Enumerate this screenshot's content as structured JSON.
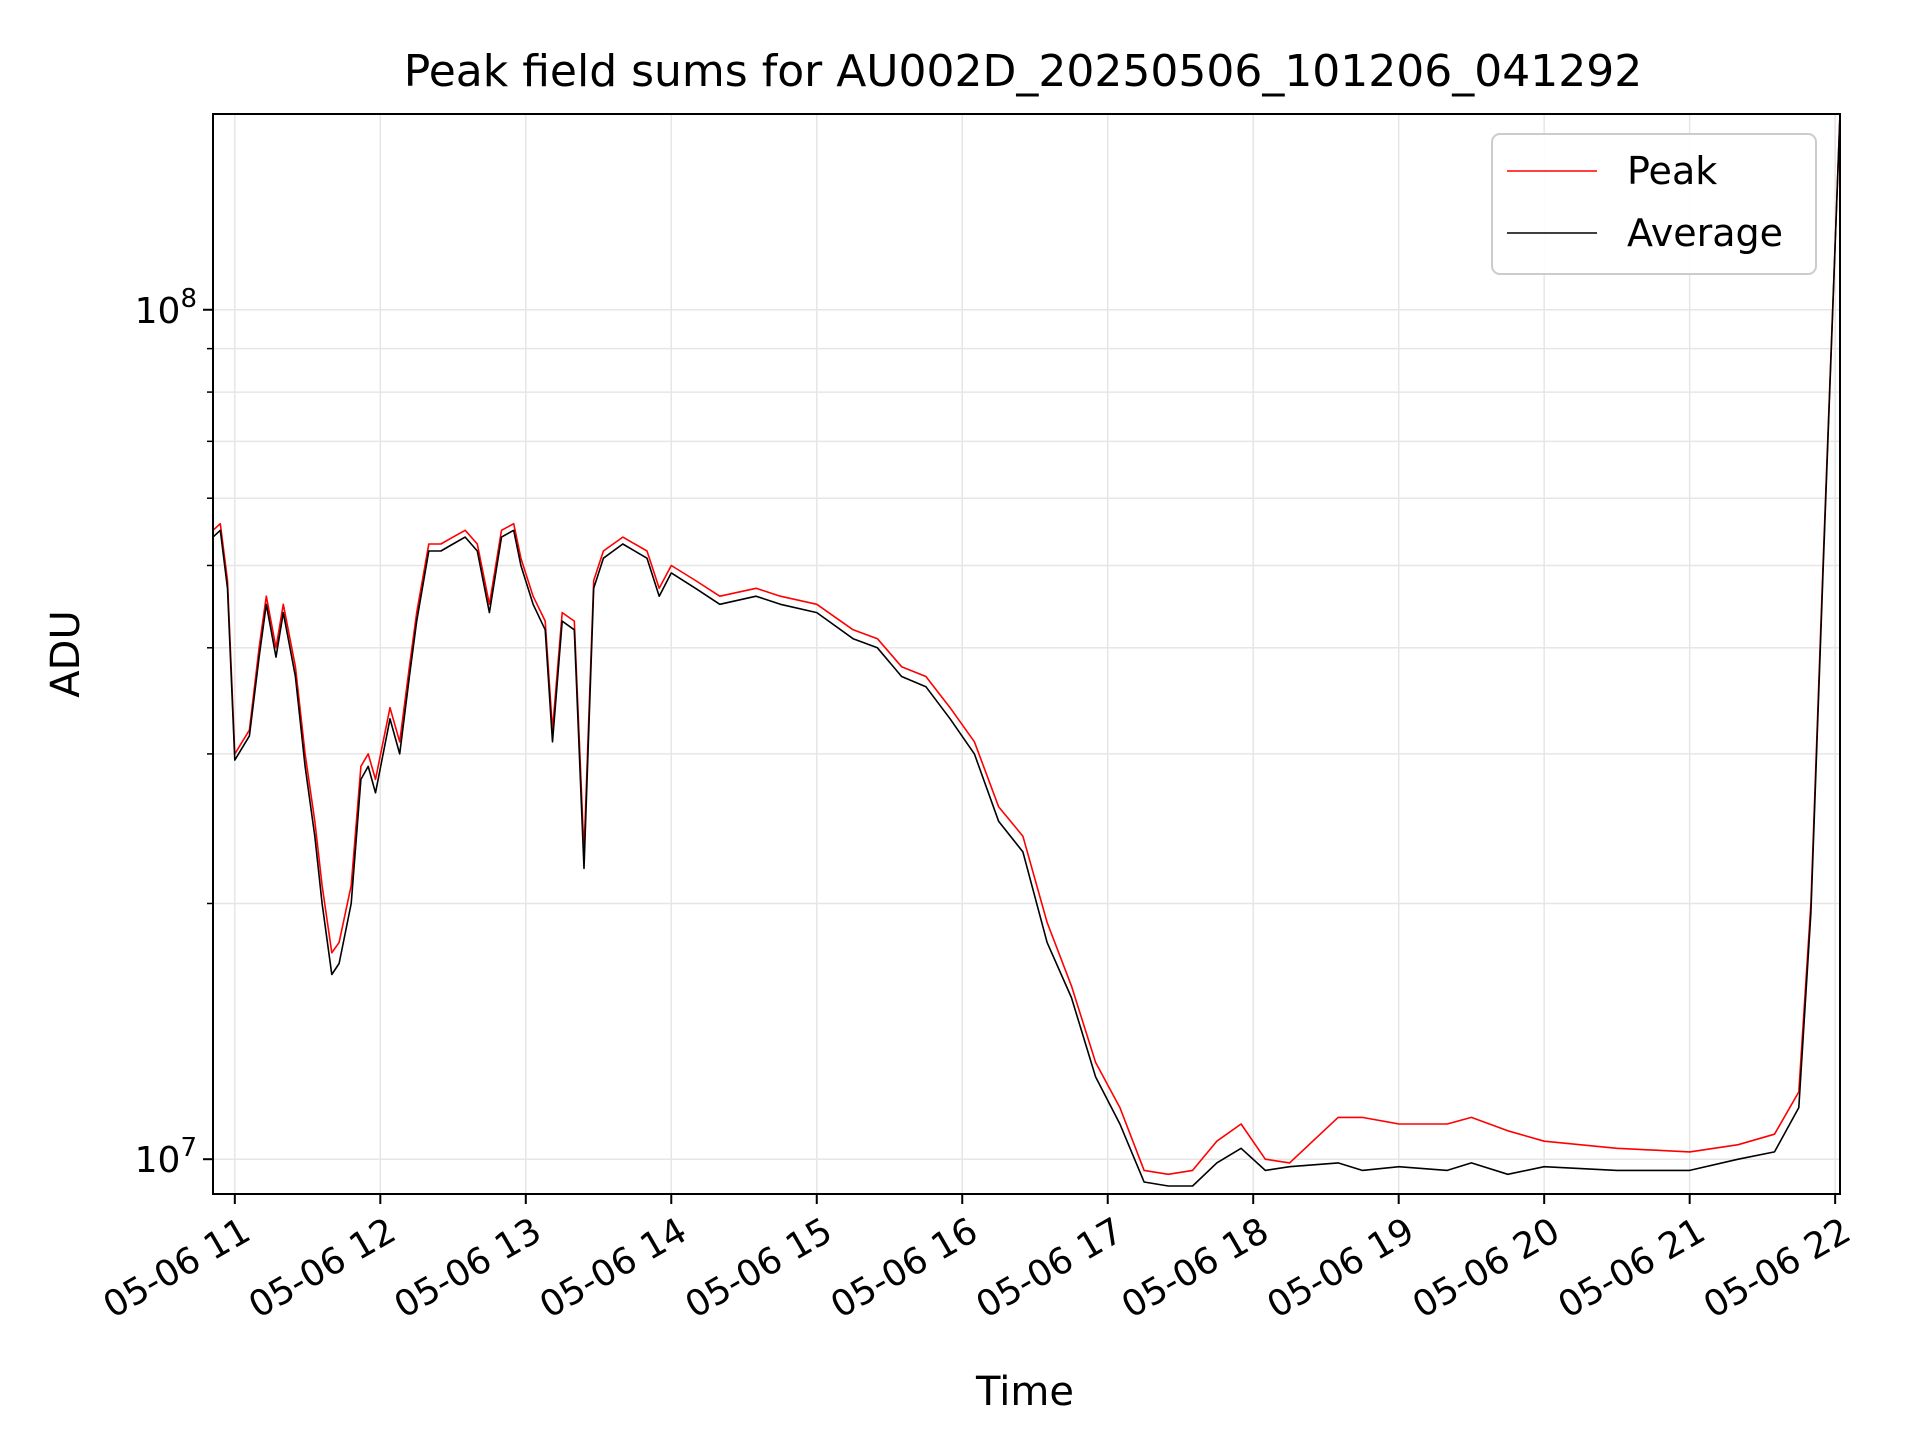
{
  "chart_data": {
    "type": "line",
    "title": "Peak field sums for AU002D_20250506_101206_041292",
    "xlabel": "Time",
    "ylabel": "ADU",
    "y_scale": "log",
    "ylim": [
      9100000,
      170000000
    ],
    "xlim": [
      "2025-05-06 10:51",
      "2025-05-06 22:02"
    ],
    "x_ticks": [
      "2025-05-06 11:00",
      "2025-05-06 12:00",
      "2025-05-06 13:00",
      "2025-05-06 14:00",
      "2025-05-06 15:00",
      "2025-05-06 16:00",
      "2025-05-06 17:00",
      "2025-05-06 18:00",
      "2025-05-06 19:00",
      "2025-05-06 20:00",
      "2025-05-06 21:00",
      "2025-05-06 22:00"
    ],
    "x_tick_labels": [
      "05-06 11",
      "05-06 12",
      "05-06 13",
      "05-06 14",
      "05-06 15",
      "05-06 16",
      "05-06 17",
      "05-06 18",
      "05-06 19",
      "05-06 20",
      "05-06 21",
      "05-06 22"
    ],
    "y_ticks": [
      10000000,
      100000000
    ],
    "y_tick_labels": [
      {
        "base": "10",
        "exp": "7"
      },
      {
        "base": "10",
        "exp": "8"
      }
    ],
    "grid": true,
    "legend_position": "top-right",
    "series": [
      {
        "name": "Peak",
        "color": "#ff0000",
        "x": [
          "2025-05-06 10:51",
          "2025-05-06 10:54",
          "2025-05-06 10:57",
          "2025-05-06 11:00",
          "2025-05-06 11:06",
          "2025-05-06 11:10",
          "2025-05-06 11:13",
          "2025-05-06 11:17",
          "2025-05-06 11:20",
          "2025-05-06 11:25",
          "2025-05-06 11:29",
          "2025-05-06 11:33",
          "2025-05-06 11:36",
          "2025-05-06 11:40",
          "2025-05-06 11:43",
          "2025-05-06 11:48",
          "2025-05-06 11:52",
          "2025-05-06 11:55",
          "2025-05-06 11:58",
          "2025-05-06 12:04",
          "2025-05-06 12:08",
          "2025-05-06 12:12",
          "2025-05-06 12:15",
          "2025-05-06 12:20",
          "2025-05-06 12:25",
          "2025-05-06 12:30",
          "2025-05-06 12:35",
          "2025-05-06 12:40",
          "2025-05-06 12:45",
          "2025-05-06 12:50",
          "2025-05-06 12:55",
          "2025-05-06 12:58",
          "2025-05-06 13:03",
          "2025-05-06 13:08",
          "2025-05-06 13:11",
          "2025-05-06 13:15",
          "2025-05-06 13:20",
          "2025-05-06 13:24",
          "2025-05-06 13:28",
          "2025-05-06 13:32",
          "2025-05-06 13:40",
          "2025-05-06 13:50",
          "2025-05-06 13:55",
          "2025-05-06 14:00",
          "2025-05-06 14:10",
          "2025-05-06 14:20",
          "2025-05-06 14:35",
          "2025-05-06 14:45",
          "2025-05-06 15:00",
          "2025-05-06 15:15",
          "2025-05-06 15:25",
          "2025-05-06 15:35",
          "2025-05-06 15:45",
          "2025-05-06 15:55",
          "2025-05-06 16:05",
          "2025-05-06 16:15",
          "2025-05-06 16:25",
          "2025-05-06 16:35",
          "2025-05-06 16:45",
          "2025-05-06 16:55",
          "2025-05-06 17:05",
          "2025-05-06 17:15",
          "2025-05-06 17:25",
          "2025-05-06 17:35",
          "2025-05-06 17:45",
          "2025-05-06 17:55",
          "2025-05-06 18:05",
          "2025-05-06 18:15",
          "2025-05-06 18:35",
          "2025-05-06 18:45",
          "2025-05-06 19:00",
          "2025-05-06 19:20",
          "2025-05-06 19:30",
          "2025-05-06 19:45",
          "2025-05-06 20:00",
          "2025-05-06 20:30",
          "2025-05-06 21:00",
          "2025-05-06 21:20",
          "2025-05-06 21:35",
          "2025-05-06 21:45",
          "2025-05-06 21:50",
          "2025-05-06 21:55",
          "2025-05-06 22:02"
        ],
        "y": [
          55000000,
          56000000,
          48000000,
          30000000,
          32000000,
          40000000,
          46000000,
          40000000,
          45000000,
          38000000,
          30000000,
          25000000,
          21000000,
          17500000,
          18000000,
          21000000,
          29000000,
          30000000,
          28000000,
          34000000,
          31000000,
          38000000,
          44000000,
          53000000,
          53000000,
          54000000,
          55000000,
          53000000,
          45000000,
          55000000,
          56000000,
          51000000,
          46000000,
          43000000,
          32000000,
          44000000,
          43000000,
          23000000,
          48000000,
          52000000,
          54000000,
          52000000,
          47000000,
          50000000,
          48000000,
          46000000,
          47000000,
          46000000,
          45000000,
          42000000,
          41000000,
          38000000,
          37000000,
          34000000,
          31000000,
          26000000,
          24000000,
          19000000,
          16000000,
          13000000,
          11500000,
          9700000,
          9600000,
          9700000,
          10500000,
          11000000,
          10000000,
          9900000,
          11200000,
          11200000,
          11000000,
          11000000,
          11200000,
          10800000,
          10500000,
          10300000,
          10200000,
          10400000,
          10700000,
          12000000,
          20000000,
          50000000,
          170000000
        ]
      },
      {
        "name": "Average",
        "color": "#000000",
        "x": [
          "2025-05-06 10:51",
          "2025-05-06 10:54",
          "2025-05-06 10:57",
          "2025-05-06 11:00",
          "2025-05-06 11:06",
          "2025-05-06 11:10",
          "2025-05-06 11:13",
          "2025-05-06 11:17",
          "2025-05-06 11:20",
          "2025-05-06 11:25",
          "2025-05-06 11:29",
          "2025-05-06 11:33",
          "2025-05-06 11:36",
          "2025-05-06 11:40",
          "2025-05-06 11:43",
          "2025-05-06 11:48",
          "2025-05-06 11:52",
          "2025-05-06 11:55",
          "2025-05-06 11:58",
          "2025-05-06 12:04",
          "2025-05-06 12:08",
          "2025-05-06 12:12",
          "2025-05-06 12:15",
          "2025-05-06 12:20",
          "2025-05-06 12:25",
          "2025-05-06 12:30",
          "2025-05-06 12:35",
          "2025-05-06 12:40",
          "2025-05-06 12:45",
          "2025-05-06 12:50",
          "2025-05-06 12:55",
          "2025-05-06 12:58",
          "2025-05-06 13:03",
          "2025-05-06 13:08",
          "2025-05-06 13:11",
          "2025-05-06 13:15",
          "2025-05-06 13:20",
          "2025-05-06 13:24",
          "2025-05-06 13:28",
          "2025-05-06 13:32",
          "2025-05-06 13:40",
          "2025-05-06 13:50",
          "2025-05-06 13:55",
          "2025-05-06 14:00",
          "2025-05-06 14:10",
          "2025-05-06 14:20",
          "2025-05-06 14:35",
          "2025-05-06 14:45",
          "2025-05-06 15:00",
          "2025-05-06 15:15",
          "2025-05-06 15:25",
          "2025-05-06 15:35",
          "2025-05-06 15:45",
          "2025-05-06 15:55",
          "2025-05-06 16:05",
          "2025-05-06 16:15",
          "2025-05-06 16:25",
          "2025-05-06 16:35",
          "2025-05-06 16:45",
          "2025-05-06 16:55",
          "2025-05-06 17:05",
          "2025-05-06 17:15",
          "2025-05-06 17:25",
          "2025-05-06 17:35",
          "2025-05-06 17:45",
          "2025-05-06 17:55",
          "2025-05-06 18:05",
          "2025-05-06 18:15",
          "2025-05-06 18:35",
          "2025-05-06 18:45",
          "2025-05-06 19:00",
          "2025-05-06 19:20",
          "2025-05-06 19:30",
          "2025-05-06 19:45",
          "2025-05-06 20:00",
          "2025-05-06 20:30",
          "2025-05-06 21:00",
          "2025-05-06 21:20",
          "2025-05-06 21:35",
          "2025-05-06 21:45",
          "2025-05-06 21:50",
          "2025-05-06 21:55",
          "2025-05-06 22:02"
        ],
        "y": [
          54000000,
          55000000,
          47000000,
          29500000,
          31500000,
          39000000,
          45000000,
          39000000,
          44000000,
          37000000,
          29000000,
          24000000,
          20000000,
          16500000,
          17000000,
          20000000,
          28000000,
          29000000,
          27000000,
          33000000,
          30000000,
          37000000,
          43000000,
          52000000,
          52000000,
          53000000,
          54000000,
          52000000,
          44000000,
          54000000,
          55000000,
          50000000,
          45000000,
          42000000,
          31000000,
          43000000,
          42000000,
          22000000,
          47000000,
          51000000,
          53000000,
          51000000,
          46000000,
          49000000,
          47000000,
          45000000,
          46000000,
          45000000,
          44000000,
          41000000,
          40000000,
          37000000,
          36000000,
          33000000,
          30000000,
          25000000,
          23000000,
          18000000,
          15500000,
          12500000,
          11000000,
          9400000,
          9300000,
          9300000,
          9900000,
          10300000,
          9700000,
          9800000,
          9900000,
          9700000,
          9800000,
          9700000,
          9900000,
          9600000,
          9800000,
          9700000,
          9700000,
          10000000,
          10200000,
          11500000,
          19500000,
          49000000,
          170000000
        ]
      }
    ]
  }
}
